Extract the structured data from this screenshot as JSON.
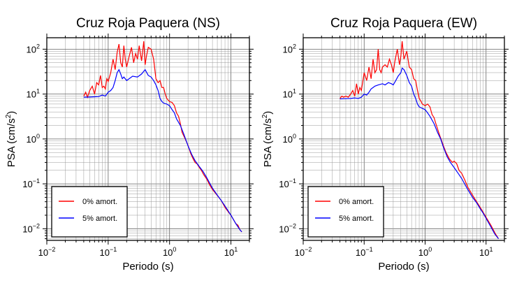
{
  "chart_data": [
    {
      "type": "line",
      "title": "Cruz Roja Paquera (NS)",
      "xlabel": "Periodo (s)",
      "ylabel_main": "PSA (cm/s",
      "ylabel_sup": "2",
      "ylabel_end": ")",
      "xscale": "log",
      "yscale": "log",
      "xlim": [
        0.01,
        20
      ],
      "ylim": [
        0.0055,
        180
      ],
      "x_ticks": [
        {
          "value": 0.01,
          "base": "10",
          "exp": "−2"
        },
        {
          "value": 0.1,
          "base": "10",
          "exp": "−1"
        },
        {
          "value": 1,
          "base": "10",
          "exp": "0"
        },
        {
          "value": 10,
          "base": "10",
          "exp": "1"
        }
      ],
      "y_ticks": [
        {
          "value": 0.01,
          "base": "10",
          "exp": "−2"
        },
        {
          "value": 0.1,
          "base": "10",
          "exp": "−1"
        },
        {
          "value": 1,
          "base": "10",
          "exp": "0"
        },
        {
          "value": 10,
          "base": "10",
          "exp": "1"
        },
        {
          "value": 100,
          "base": "10",
          "exp": "2"
        }
      ],
      "grid": true,
      "legend_position": "bottom-left",
      "series": [
        {
          "name": "0% amort.",
          "color": "#ff0000",
          "points": [
            [
              0.04,
              9
            ],
            [
              0.043,
              11
            ],
            [
              0.046,
              8.5
            ],
            [
              0.05,
              12
            ],
            [
              0.055,
              15
            ],
            [
              0.06,
              10
            ],
            [
              0.065,
              18
            ],
            [
              0.07,
              16
            ],
            [
              0.075,
              26
            ],
            [
              0.08,
              14
            ],
            [
              0.085,
              15
            ],
            [
              0.09,
              13
            ],
            [
              0.095,
              22
            ],
            [
              0.1,
              19
            ],
            [
              0.11,
              30
            ],
            [
              0.12,
              60
            ],
            [
              0.13,
              35
            ],
            [
              0.14,
              85
            ],
            [
              0.15,
              130
            ],
            [
              0.16,
              50
            ],
            [
              0.17,
              40
            ],
            [
              0.18,
              120
            ],
            [
              0.19,
              60
            ],
            [
              0.2,
              40
            ],
            [
              0.22,
              70
            ],
            [
              0.24,
              110
            ],
            [
              0.26,
              50
            ],
            [
              0.28,
              80
            ],
            [
              0.3,
              60
            ],
            [
              0.32,
              120
            ],
            [
              0.35,
              55
            ],
            [
              0.38,
              150
            ],
            [
              0.4,
              45
            ],
            [
              0.42,
              70
            ],
            [
              0.45,
              110
            ],
            [
              0.5,
              100
            ],
            [
              0.55,
              60
            ],
            [
              0.6,
              22
            ],
            [
              0.65,
              18
            ],
            [
              0.7,
              20
            ],
            [
              0.75,
              14
            ],
            [
              0.8,
              14
            ],
            [
              0.85,
              10
            ],
            [
              0.9,
              8
            ],
            [
              1.0,
              6.8
            ],
            [
              1.1,
              6.5
            ],
            [
              1.2,
              5.5
            ],
            [
              1.3,
              3.8
            ],
            [
              1.4,
              3.2
            ],
            [
              1.5,
              2.2
            ],
            [
              1.6,
              1.4
            ],
            [
              1.8,
              1.0
            ],
            [
              2.0,
              0.72
            ],
            [
              2.2,
              0.48
            ],
            [
              2.4,
              0.37
            ],
            [
              2.6,
              0.3
            ],
            [
              2.8,
              0.28
            ],
            [
              3.0,
              0.24
            ],
            [
              3.3,
              0.2
            ],
            [
              3.6,
              0.16
            ],
            [
              4.0,
              0.13
            ],
            [
              4.5,
              0.095
            ],
            [
              5,
              0.075
            ],
            [
              6,
              0.055
            ],
            [
              7,
              0.042
            ],
            [
              8,
              0.03
            ],
            [
              9,
              0.024
            ],
            [
              10,
              0.02
            ],
            [
              11,
              0.016
            ],
            [
              12,
              0.013
            ],
            [
              13,
              0.012
            ],
            [
              14,
              0.0095
            ],
            [
              15,
              0.0085
            ]
          ]
        },
        {
          "name": "5% amort.",
          "color": "#0000ff",
          "points": [
            [
              0.04,
              8.5
            ],
            [
              0.05,
              8.6
            ],
            [
              0.06,
              8.7
            ],
            [
              0.07,
              8.8
            ],
            [
              0.08,
              9.5
            ],
            [
              0.09,
              9
            ],
            [
              0.1,
              11
            ],
            [
              0.11,
              12
            ],
            [
              0.12,
              14
            ],
            [
              0.13,
              20
            ],
            [
              0.14,
              30
            ],
            [
              0.15,
              35
            ],
            [
              0.16,
              28
            ],
            [
              0.17,
              22
            ],
            [
              0.18,
              24
            ],
            [
              0.2,
              20
            ],
            [
              0.22,
              22
            ],
            [
              0.25,
              25
            ],
            [
              0.3,
              24
            ],
            [
              0.35,
              28
            ],
            [
              0.4,
              35
            ],
            [
              0.45,
              26
            ],
            [
              0.5,
              24
            ],
            [
              0.55,
              20
            ],
            [
              0.6,
              16
            ],
            [
              0.65,
              12
            ],
            [
              0.7,
              8
            ],
            [
              0.75,
              6.8
            ],
            [
              0.8,
              6.3
            ],
            [
              0.9,
              6
            ],
            [
              1.0,
              5.5
            ],
            [
              1.1,
              4.5
            ],
            [
              1.2,
              3.8
            ],
            [
              1.3,
              2.8
            ],
            [
              1.5,
              2.0
            ],
            [
              1.7,
              1.3
            ],
            [
              2.0,
              0.7
            ],
            [
              2.3,
              0.45
            ],
            [
              2.6,
              0.33
            ],
            [
              3.0,
              0.25
            ],
            [
              3.5,
              0.19
            ],
            [
              4.0,
              0.14
            ],
            [
              5,
              0.08
            ],
            [
              6,
              0.056
            ],
            [
              7,
              0.042
            ],
            [
              8,
              0.032
            ],
            [
              9,
              0.025
            ],
            [
              10,
              0.02
            ],
            [
              12,
              0.013
            ],
            [
              14,
              0.0095
            ],
            [
              15,
              0.0085
            ]
          ]
        }
      ]
    },
    {
      "type": "line",
      "title": "Cruz Roja Paquera (EW)",
      "xlabel": "Periodo (s)",
      "ylabel_main": "PSA (cm/s",
      "ylabel_sup": "2",
      "ylabel_end": ")",
      "xscale": "log",
      "yscale": "log",
      "xlim": [
        0.01,
        20
      ],
      "ylim": [
        0.0055,
        180
      ],
      "x_ticks": [
        {
          "value": 0.01,
          "base": "10",
          "exp": "−2"
        },
        {
          "value": 0.1,
          "base": "10",
          "exp": "−1"
        },
        {
          "value": 1,
          "base": "10",
          "exp": "0"
        },
        {
          "value": 10,
          "base": "10",
          "exp": "1"
        }
      ],
      "y_ticks": [
        {
          "value": 0.01,
          "base": "10",
          "exp": "−2"
        },
        {
          "value": 0.1,
          "base": "10",
          "exp": "−1"
        },
        {
          "value": 1,
          "base": "10",
          "exp": "0"
        },
        {
          "value": 10,
          "base": "10",
          "exp": "1"
        },
        {
          "value": 100,
          "base": "10",
          "exp": "2"
        }
      ],
      "grid": true,
      "legend_position": "bottom-left",
      "series": [
        {
          "name": "0% amort.",
          "color": "#ff0000",
          "points": [
            [
              0.04,
              8
            ],
            [
              0.043,
              9
            ],
            [
              0.046,
              8.5
            ],
            [
              0.05,
              9
            ],
            [
              0.055,
              8.5
            ],
            [
              0.06,
              10
            ],
            [
              0.065,
              12
            ],
            [
              0.07,
              9
            ],
            [
              0.075,
              17
            ],
            [
              0.08,
              10
            ],
            [
              0.085,
              14
            ],
            [
              0.09,
              12
            ],
            [
              0.1,
              30
            ],
            [
              0.11,
              20
            ],
            [
              0.12,
              40
            ],
            [
              0.13,
              22
            ],
            [
              0.14,
              60
            ],
            [
              0.15,
              30
            ],
            [
              0.16,
              35
            ],
            [
              0.17,
              100
            ],
            [
              0.18,
              35
            ],
            [
              0.19,
              30
            ],
            [
              0.2,
              40
            ],
            [
              0.22,
              45
            ],
            [
              0.24,
              40
            ],
            [
              0.26,
              60
            ],
            [
              0.28,
              45
            ],
            [
              0.3,
              30
            ],
            [
              0.32,
              55
            ],
            [
              0.35,
              100
            ],
            [
              0.38,
              45
            ],
            [
              0.4,
              70
            ],
            [
              0.42,
              150
            ],
            [
              0.45,
              60
            ],
            [
              0.5,
              90
            ],
            [
              0.55,
              40
            ],
            [
              0.6,
              35
            ],
            [
              0.65,
              22
            ],
            [
              0.7,
              20
            ],
            [
              0.75,
              12
            ],
            [
              0.8,
              8
            ],
            [
              0.85,
              7
            ],
            [
              0.9,
              6
            ],
            [
              1.0,
              5.5
            ],
            [
              1.1,
              6
            ],
            [
              1.2,
              5.2
            ],
            [
              1.3,
              3.5
            ],
            [
              1.4,
              3.0
            ],
            [
              1.5,
              2.2
            ],
            [
              1.7,
              1.3
            ],
            [
              2.0,
              0.7
            ],
            [
              2.2,
              0.5
            ],
            [
              2.5,
              0.36
            ],
            [
              2.8,
              0.3
            ],
            [
              3.0,
              0.32
            ],
            [
              3.3,
              0.28
            ],
            [
              3.6,
              0.2
            ],
            [
              4.0,
              0.17
            ],
            [
              4.5,
              0.12
            ],
            [
              5,
              0.085
            ],
            [
              6,
              0.056
            ],
            [
              7,
              0.04
            ],
            [
              8,
              0.03
            ],
            [
              9,
              0.023
            ],
            [
              10,
              0.018
            ],
            [
              12,
              0.012
            ],
            [
              14,
              0.008
            ],
            [
              16,
              0.006
            ]
          ]
        },
        {
          "name": "5% amort.",
          "color": "#0000ff",
          "points": [
            [
              0.04,
              7.8
            ],
            [
              0.05,
              7.9
            ],
            [
              0.06,
              8
            ],
            [
              0.07,
              8.2
            ],
            [
              0.08,
              8
            ],
            [
              0.09,
              8.5
            ],
            [
              0.1,
              10
            ],
            [
              0.11,
              9.5
            ],
            [
              0.12,
              11
            ],
            [
              0.13,
              13
            ],
            [
              0.14,
              14
            ],
            [
              0.15,
              15
            ],
            [
              0.17,
              16
            ],
            [
              0.2,
              17
            ],
            [
              0.22,
              16
            ],
            [
              0.25,
              18
            ],
            [
              0.28,
              17
            ],
            [
              0.3,
              16
            ],
            [
              0.33,
              20
            ],
            [
              0.36,
              25
            ],
            [
              0.4,
              30
            ],
            [
              0.42,
              38
            ],
            [
              0.45,
              35
            ],
            [
              0.5,
              26
            ],
            [
              0.55,
              18
            ],
            [
              0.6,
              15
            ],
            [
              0.65,
              10
            ],
            [
              0.7,
              8
            ],
            [
              0.75,
              6
            ],
            [
              0.8,
              5.2
            ],
            [
              0.9,
              4.8
            ],
            [
              1.0,
              4.5
            ],
            [
              1.1,
              3.8
            ],
            [
              1.2,
              3.2
            ],
            [
              1.4,
              2.2
            ],
            [
              1.6,
              1.4
            ],
            [
              1.8,
              1.0
            ],
            [
              2.0,
              0.65
            ],
            [
              2.3,
              0.4
            ],
            [
              2.6,
              0.3
            ],
            [
              3.0,
              0.23
            ],
            [
              3.5,
              0.17
            ],
            [
              4.0,
              0.13
            ],
            [
              5,
              0.075
            ],
            [
              6,
              0.05
            ],
            [
              7,
              0.038
            ],
            [
              8,
              0.028
            ],
            [
              9,
              0.022
            ],
            [
              10,
              0.017
            ],
            [
              12,
              0.011
            ],
            [
              14,
              0.0075
            ],
            [
              16,
              0.006
            ]
          ]
        }
      ]
    }
  ]
}
